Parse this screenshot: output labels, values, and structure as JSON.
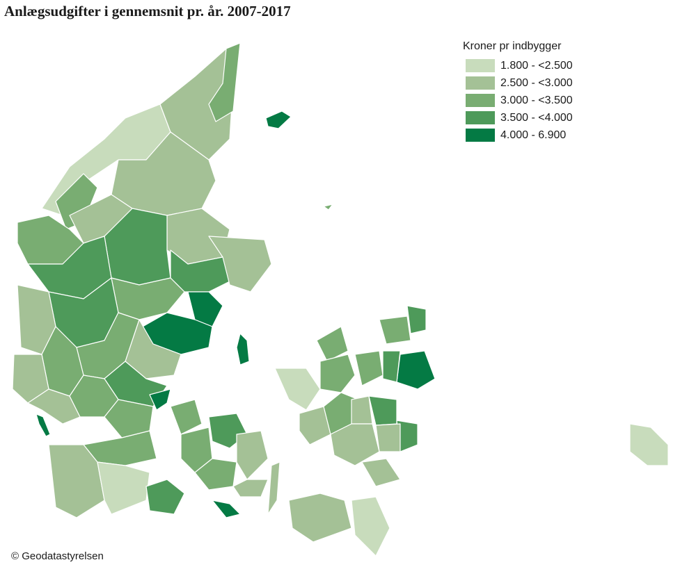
{
  "title": "Anlægsudgifter i gennemsnit pr. år. 2007-2017",
  "legend": {
    "title": "Kroner pr indbygger",
    "classes": [
      {
        "label": "1.800 - <2.500",
        "color": "#c8dcbc"
      },
      {
        "label": "2.500 - <3.000",
        "color": "#a4c196"
      },
      {
        "label": "3.000 - <3.500",
        "color": "#79ad72"
      },
      {
        "label": "3.500 - <4.000",
        "color": "#4e9a5a"
      },
      {
        "label": "4.000 - 6.900",
        "color": "#047a44"
      }
    ]
  },
  "credit": "© Geodatastyrelsen"
}
